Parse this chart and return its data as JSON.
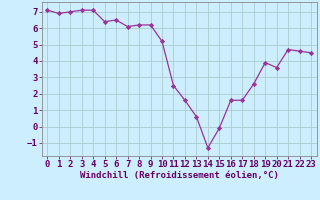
{
  "x": [
    0,
    1,
    2,
    3,
    4,
    5,
    6,
    7,
    8,
    9,
    10,
    11,
    12,
    13,
    14,
    15,
    16,
    17,
    18,
    19,
    20,
    21,
    22,
    23
  ],
  "y": [
    7.1,
    6.9,
    7.0,
    7.1,
    7.1,
    6.4,
    6.5,
    6.1,
    6.2,
    6.2,
    5.2,
    2.5,
    1.6,
    0.6,
    -1.3,
    -0.1,
    1.6,
    1.6,
    2.6,
    3.9,
    3.6,
    4.7,
    4.6,
    4.5
  ],
  "line_color": "#993399",
  "marker": "D",
  "marker_size": 2.2,
  "bg_color": "#cceeff",
  "grid_color": "#aacccc",
  "xlabel": "Windchill (Refroidissement éolien,°C)",
  "xlabel_fontsize": 6.5,
  "tick_fontsize": 6.5,
  "xlim": [
    -0.5,
    23.5
  ],
  "ylim": [
    -1.8,
    7.6
  ],
  "yticks": [
    -1,
    0,
    1,
    2,
    3,
    4,
    5,
    6,
    7
  ],
  "xticks": [
    0,
    1,
    2,
    3,
    4,
    5,
    6,
    7,
    8,
    9,
    10,
    11,
    12,
    13,
    14,
    15,
    16,
    17,
    18,
    19,
    20,
    21,
    22,
    23
  ]
}
